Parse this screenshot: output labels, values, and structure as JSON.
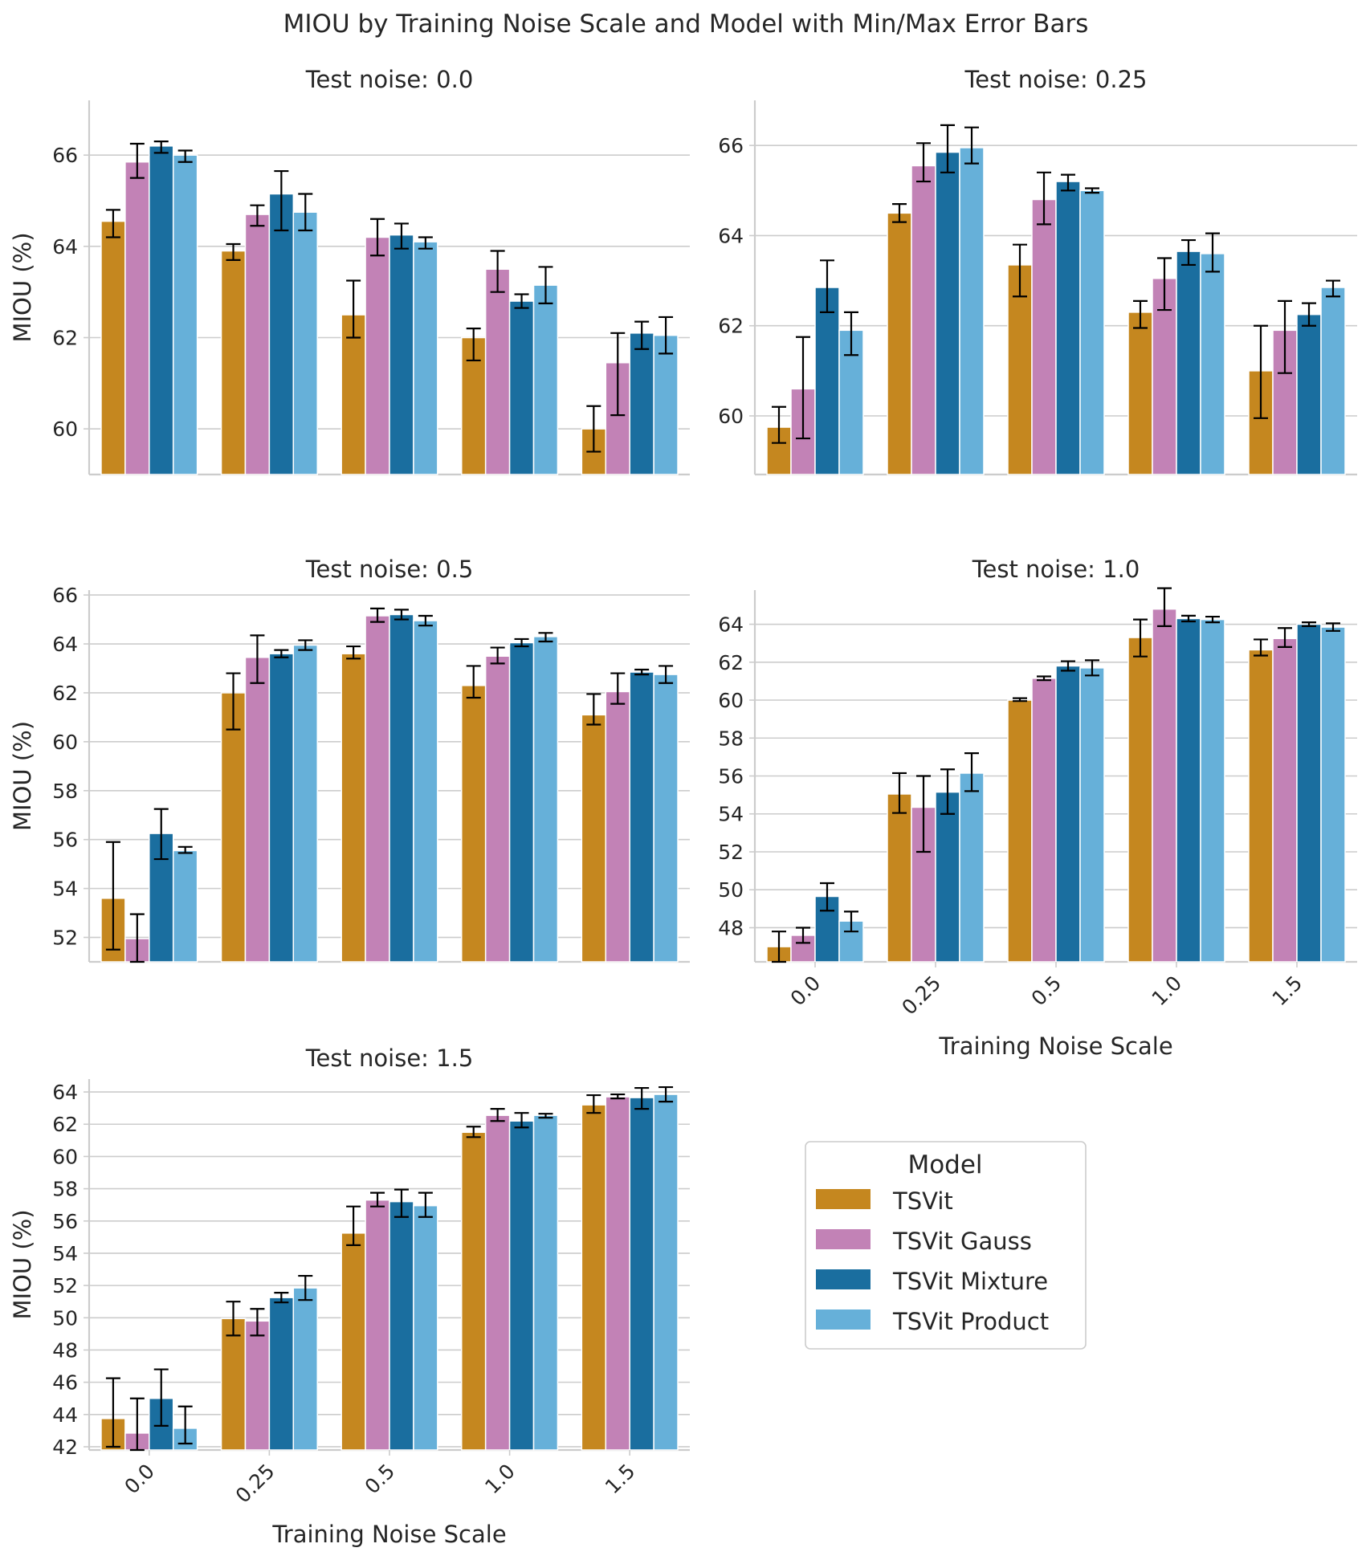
{
  "figure_title": "MIOU by Training Noise Scale and Model with Min/Max Error Bars",
  "legend": {
    "title": "Model",
    "entries": [
      {
        "name": "TSVit",
        "color": "#c5871f"
      },
      {
        "name": "TSVit Gauss",
        "color": "#c282b6"
      },
      {
        "name": "TSVit Mixture",
        "color": "#1a6e9f"
      },
      {
        "name": "TSVit Product",
        "color": "#66b0d9"
      }
    ]
  },
  "chart_data": [
    {
      "type": "bar",
      "title": "Test noise: 0.0",
      "xlabel": "",
      "ylabel": "MIOU (%)",
      "categories": [
        "0.0",
        "0.25",
        "0.5",
        "1.0",
        "1.5"
      ],
      "ylim": [
        59,
        67.2
      ],
      "yticks": [
        60,
        62,
        64,
        66
      ],
      "grid": true,
      "series": [
        {
          "name": "TSVit",
          "values": [
            64.55,
            63.9,
            62.5,
            62.0,
            60.0
          ],
          "min": [
            64.2,
            63.7,
            62.0,
            61.5,
            59.5
          ],
          "max": [
            64.8,
            64.05,
            63.25,
            62.2,
            60.5
          ]
        },
        {
          "name": "TSVit Gauss",
          "values": [
            65.85,
            64.7,
            64.2,
            63.5,
            61.45
          ],
          "min": [
            65.5,
            64.45,
            63.8,
            63.0,
            60.3
          ],
          "max": [
            66.25,
            64.9,
            64.6,
            63.9,
            62.1
          ]
        },
        {
          "name": "TSVit Mixture",
          "values": [
            66.2,
            65.15,
            64.25,
            62.8,
            62.1
          ],
          "min": [
            66.05,
            64.35,
            63.95,
            62.65,
            61.75
          ],
          "max": [
            66.3,
            65.65,
            64.5,
            62.95,
            62.35
          ]
        },
        {
          "name": "TSVit Product",
          "values": [
            66.0,
            64.75,
            64.1,
            63.15,
            62.05
          ],
          "min": [
            65.85,
            64.35,
            63.95,
            62.75,
            61.65
          ],
          "max": [
            66.1,
            65.15,
            64.2,
            63.55,
            62.45
          ]
        }
      ]
    },
    {
      "type": "bar",
      "title": "Test noise: 0.25",
      "xlabel": "",
      "ylabel": "",
      "categories": [
        "0.0",
        "0.25",
        "0.5",
        "1.0",
        "1.5"
      ],
      "ylim": [
        58.7,
        67
      ],
      "yticks": [
        60,
        62,
        64,
        66
      ],
      "grid": true,
      "series": [
        {
          "name": "TSVit",
          "values": [
            59.75,
            64.5,
            63.35,
            62.3,
            61.0
          ],
          "min": [
            59.4,
            64.3,
            62.65,
            61.95,
            59.95
          ],
          "max": [
            60.2,
            64.7,
            63.8,
            62.55,
            62.0
          ]
        },
        {
          "name": "TSVit Gauss",
          "values": [
            60.6,
            65.55,
            64.8,
            63.05,
            61.9
          ],
          "min": [
            59.5,
            65.2,
            64.25,
            62.35,
            60.95
          ],
          "max": [
            61.75,
            66.05,
            65.4,
            63.5,
            62.55
          ]
        },
        {
          "name": "TSVit Mixture",
          "values": [
            62.85,
            65.85,
            65.2,
            63.65,
            62.25
          ],
          "min": [
            62.3,
            65.4,
            65.0,
            63.35,
            62.0
          ],
          "max": [
            63.45,
            66.45,
            65.35,
            63.9,
            62.5
          ]
        },
        {
          "name": "TSVit Product",
          "values": [
            61.9,
            65.95,
            65.0,
            63.6,
            62.85
          ],
          "min": [
            61.35,
            65.6,
            64.95,
            63.2,
            62.65
          ],
          "max": [
            62.3,
            66.4,
            65.05,
            64.05,
            63.0
          ]
        }
      ]
    },
    {
      "type": "bar",
      "title": "Test noise: 0.5",
      "xlabel": "",
      "ylabel": "MIOU (%)",
      "categories": [
        "0.0",
        "0.25",
        "0.5",
        "1.0",
        "1.5"
      ],
      "ylim": [
        51,
        66.2
      ],
      "yticks": [
        52,
        54,
        56,
        58,
        60,
        62,
        64,
        66
      ],
      "grid": true,
      "series": [
        {
          "name": "TSVit",
          "values": [
            53.6,
            62.0,
            63.6,
            62.3,
            61.1
          ],
          "min": [
            51.5,
            60.5,
            63.4,
            61.8,
            60.7
          ],
          "max": [
            55.9,
            62.8,
            63.9,
            63.1,
            61.95
          ]
        },
        {
          "name": "TSVit Gauss",
          "values": [
            51.95,
            63.45,
            65.15,
            63.5,
            62.05
          ],
          "min": [
            51.0,
            62.4,
            64.9,
            63.2,
            61.55
          ],
          "max": [
            52.95,
            64.35,
            65.45,
            63.85,
            62.8
          ]
        },
        {
          "name": "TSVit Mixture",
          "values": [
            56.25,
            63.6,
            65.2,
            64.05,
            62.85
          ],
          "min": [
            55.2,
            63.45,
            65.0,
            63.9,
            62.75
          ],
          "max": [
            57.25,
            63.75,
            65.4,
            64.2,
            62.95
          ]
        },
        {
          "name": "TSVit Product",
          "values": [
            55.55,
            63.95,
            64.95,
            64.3,
            62.75
          ],
          "min": [
            55.45,
            63.75,
            64.75,
            64.1,
            62.4
          ],
          "max": [
            55.7,
            64.15,
            65.15,
            64.45,
            63.1
          ]
        }
      ]
    },
    {
      "type": "bar",
      "title": "Test noise: 1.0",
      "xlabel": "Training Noise Scale",
      "ylabel": "",
      "categories": [
        "0.0",
        "0.25",
        "0.5",
        "1.0",
        "1.5"
      ],
      "ylim": [
        46.2,
        65.8
      ],
      "yticks": [
        48,
        50,
        52,
        54,
        56,
        58,
        60,
        62,
        64
      ],
      "grid": true,
      "series": [
        {
          "name": "TSVit",
          "values": [
            47.0,
            55.05,
            60.0,
            63.3,
            62.65
          ],
          "min": [
            46.2,
            54.05,
            59.95,
            62.3,
            62.35
          ],
          "max": [
            47.8,
            56.15,
            60.1,
            64.25,
            63.2
          ]
        },
        {
          "name": "TSVit Gauss",
          "values": [
            47.6,
            54.35,
            61.15,
            64.8,
            63.25
          ],
          "min": [
            47.2,
            52.0,
            61.05,
            63.9,
            62.8
          ],
          "max": [
            48.0,
            56.0,
            61.25,
            65.9,
            63.8
          ]
        },
        {
          "name": "TSVit Mixture",
          "values": [
            49.65,
            55.15,
            61.8,
            64.3,
            64.0
          ],
          "min": [
            48.9,
            54.0,
            61.55,
            64.15,
            63.9
          ],
          "max": [
            50.35,
            56.35,
            62.05,
            64.45,
            64.1
          ]
        },
        {
          "name": "TSVit Product",
          "values": [
            48.35,
            56.15,
            61.7,
            64.25,
            63.85
          ],
          "min": [
            47.8,
            55.2,
            61.3,
            64.1,
            63.65
          ],
          "max": [
            48.85,
            57.2,
            62.1,
            64.4,
            64.05
          ]
        }
      ]
    },
    {
      "type": "bar",
      "title": "Test noise: 1.5",
      "xlabel": "Training Noise Scale",
      "ylabel": "MIOU (%)",
      "categories": [
        "0.0",
        "0.25",
        "0.5",
        "1.0",
        "1.5"
      ],
      "ylim": [
        41.8,
        64.8
      ],
      "yticks": [
        42,
        44,
        46,
        48,
        50,
        52,
        54,
        56,
        58,
        60,
        62,
        64
      ],
      "grid": true,
      "series": [
        {
          "name": "TSVit",
          "values": [
            43.75,
            49.95,
            55.25,
            61.5,
            63.2
          ],
          "min": [
            42.0,
            48.9,
            54.5,
            61.2,
            62.7
          ],
          "max": [
            46.25,
            51.0,
            56.9,
            61.85,
            63.8
          ]
        },
        {
          "name": "TSVit Gauss",
          "values": [
            42.85,
            49.8,
            57.3,
            62.55,
            63.7
          ],
          "min": [
            41.8,
            48.9,
            56.9,
            62.2,
            63.6
          ],
          "max": [
            45.0,
            50.55,
            57.75,
            62.95,
            63.85
          ]
        },
        {
          "name": "TSVit Mixture",
          "values": [
            45.0,
            51.25,
            57.2,
            62.2,
            63.65
          ],
          "min": [
            43.3,
            50.95,
            56.25,
            61.8,
            62.95
          ],
          "max": [
            46.8,
            51.55,
            57.95,
            62.7,
            64.25
          ]
        },
        {
          "name": "TSVit Product",
          "values": [
            43.15,
            51.85,
            56.95,
            62.55,
            63.85
          ],
          "min": [
            42.2,
            51.1,
            56.25,
            62.4,
            63.4
          ],
          "max": [
            44.5,
            52.6,
            57.75,
            62.65,
            64.3
          ]
        }
      ]
    }
  ]
}
